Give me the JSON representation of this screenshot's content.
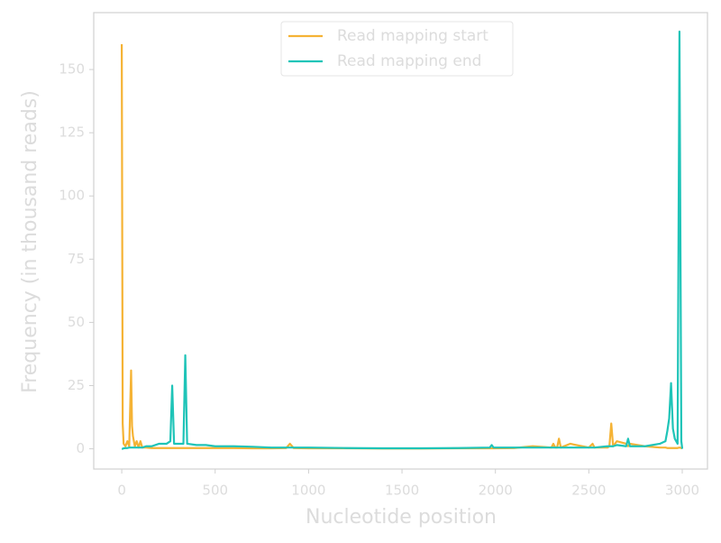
{
  "chart_data": {
    "type": "line",
    "xlabel": "Nucleotide position",
    "ylabel": "Frequency (in thousand reads)",
    "x": [
      0,
      5,
      10,
      20,
      30,
      40,
      50,
      55,
      60,
      70,
      80,
      90,
      100,
      110,
      130,
      160,
      200,
      240,
      260,
      270,
      280,
      300,
      330,
      340,
      350,
      400,
      450,
      500,
      600,
      700,
      800,
      880,
      900,
      920,
      1000,
      1200,
      1400,
      1600,
      1800,
      1970,
      1980,
      1990,
      2100,
      2200,
      2300,
      2310,
      2320,
      2330,
      2340,
      2350,
      2400,
      2500,
      2520,
      2530,
      2600,
      2610,
      2620,
      2630,
      2650,
      2700,
      2710,
      2720,
      2800,
      2880,
      2910,
      2920,
      2930,
      2940,
      2950,
      2960,
      2975,
      2985,
      2995,
      3000
    ],
    "series": [
      {
        "name": "Read mapping start",
        "color": "#f5b335",
        "values": [
          160,
          10,
          2,
          1,
          3,
          1,
          31,
          9,
          5,
          1,
          3,
          0.5,
          3,
          0.5,
          0.5,
          0.3,
          0.3,
          0.3,
          0.3,
          0.3,
          0.3,
          0.3,
          0.3,
          0.3,
          0.3,
          0.3,
          0.3,
          0.3,
          0.3,
          0.2,
          0.2,
          0.3,
          2,
          0.3,
          0.2,
          0.2,
          0.1,
          0.1,
          0.2,
          0.2,
          0.2,
          0.2,
          0.3,
          1,
          0.5,
          2,
          0.5,
          0.5,
          4,
          0.5,
          2,
          0.5,
          2,
          0.5,
          0.5,
          1,
          10,
          1,
          3,
          2,
          1,
          2,
          1,
          0.5,
          0.5,
          0.3,
          0.3,
          0.3,
          0.3,
          0.3,
          0.3,
          0.5,
          0.3,
          0.3
        ]
      },
      {
        "name": "Read mapping end",
        "color": "#1fc4b8",
        "values": [
          0,
          0,
          0.2,
          0.3,
          0.3,
          0.5,
          0.5,
          0.5,
          0.5,
          0.5,
          0.5,
          0.5,
          0.5,
          0.5,
          1,
          1,
          2,
          2,
          3,
          25,
          2,
          2,
          2,
          37,
          2,
          1.5,
          1.5,
          1,
          1,
          0.8,
          0.5,
          0.5,
          0.5,
          0.5,
          0.5,
          0.3,
          0.2,
          0.2,
          0.3,
          0.5,
          1.5,
          0.5,
          0.5,
          0.5,
          0.5,
          0.5,
          0.5,
          0.5,
          0.5,
          0.5,
          0.5,
          0.5,
          0.5,
          0.5,
          1,
          1,
          1,
          1,
          1.5,
          1,
          4,
          1,
          1,
          2,
          3,
          7,
          12,
          26,
          8,
          4,
          2,
          165,
          3,
          0
        ]
      }
    ],
    "xlim": [
      -150,
      3135
    ],
    "ylim": [
      -8,
      172.5
    ],
    "xticks": [
      0,
      500,
      1000,
      1500,
      2000,
      2500,
      3000
    ],
    "yticks": [
      0,
      25,
      50,
      75,
      100,
      125,
      150
    ],
    "legend": "upper center"
  }
}
